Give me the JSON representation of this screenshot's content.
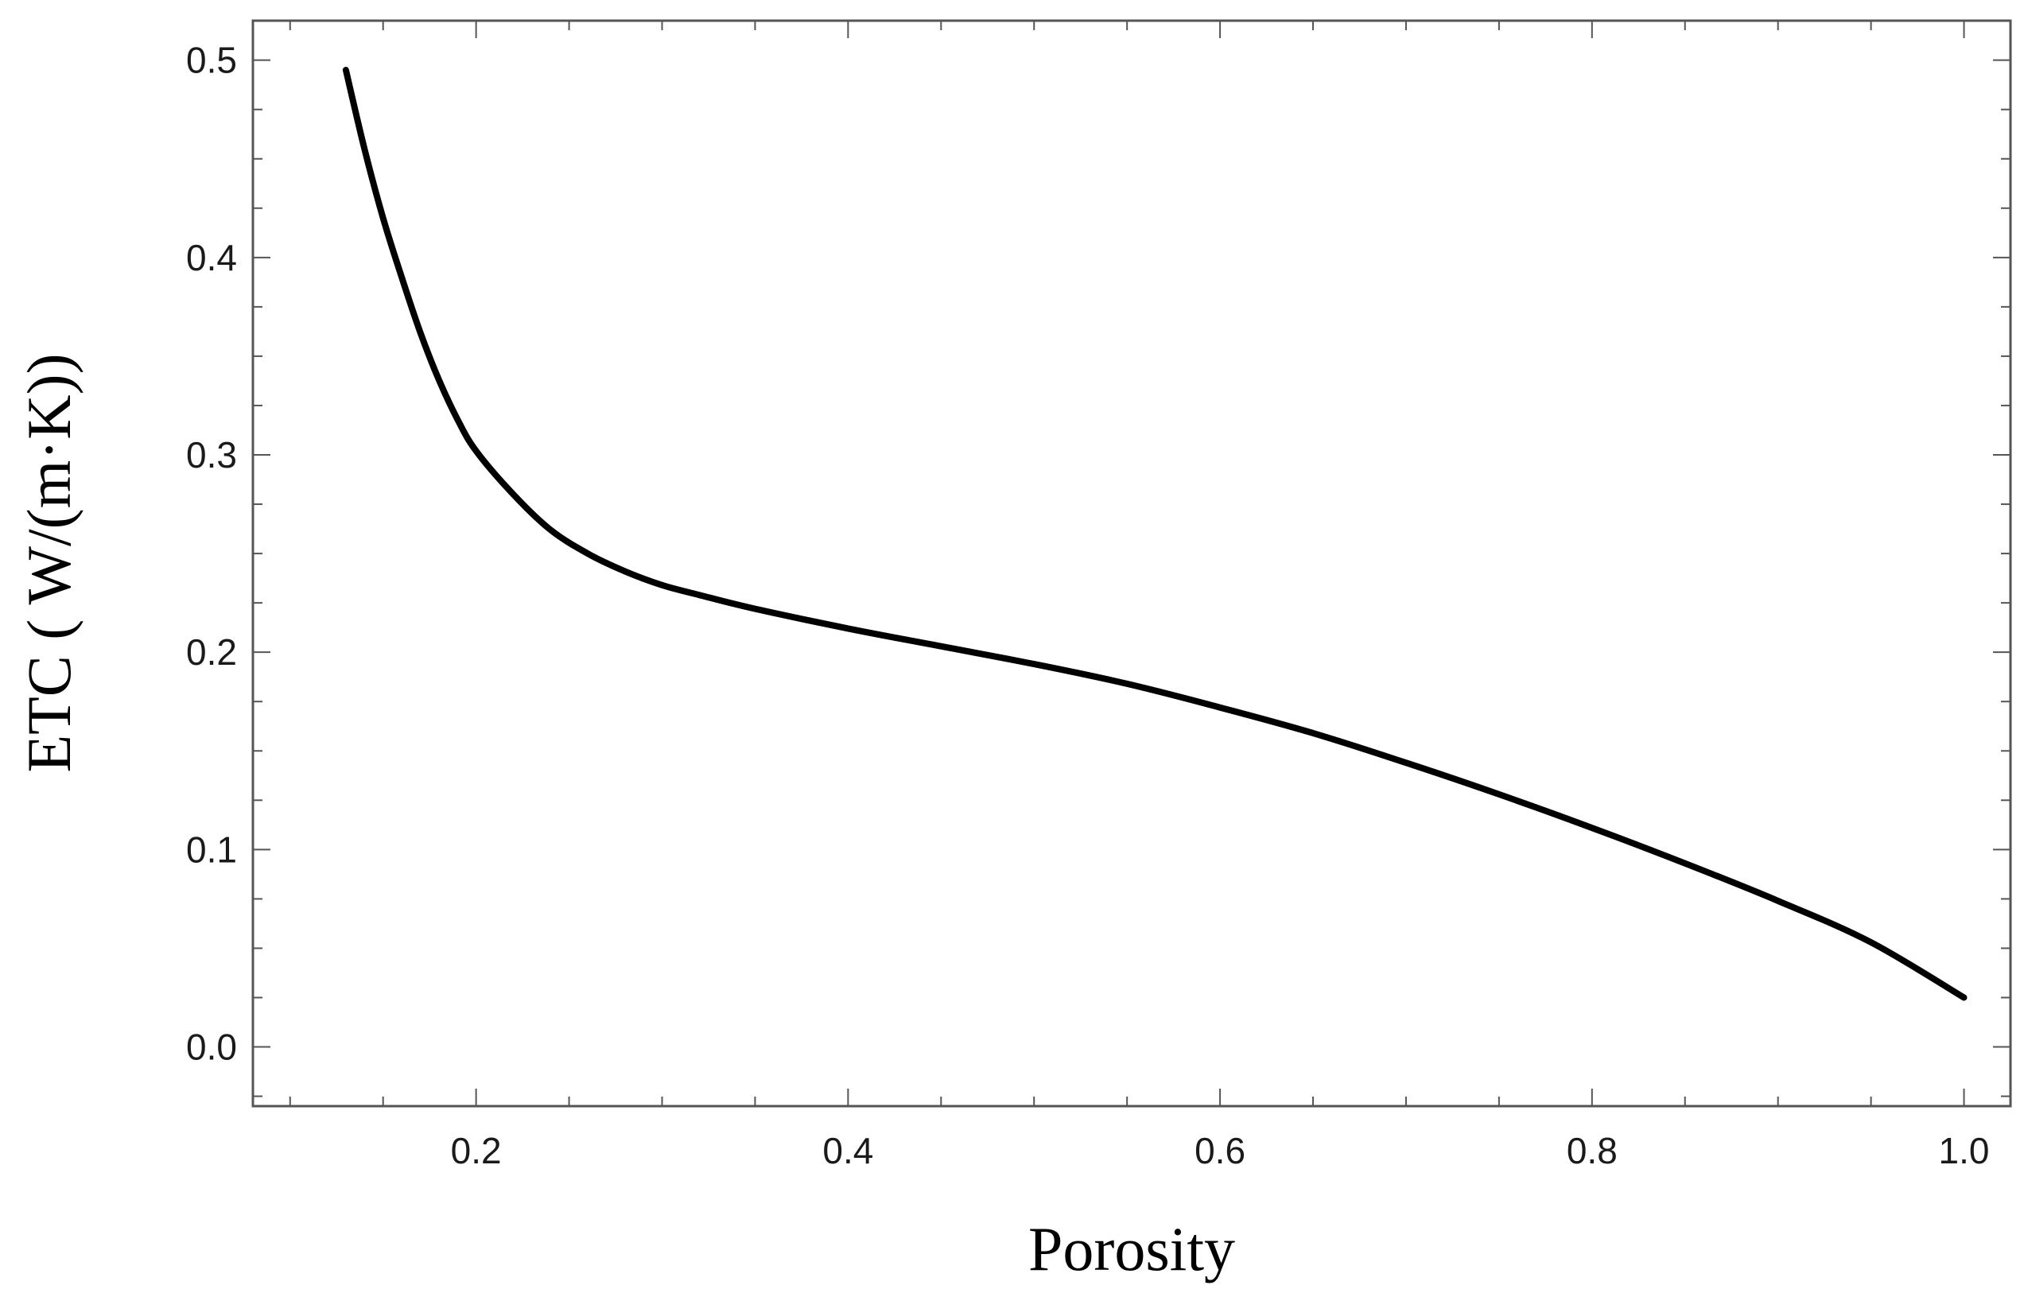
{
  "chart_data": {
    "type": "line",
    "title": "",
    "xlabel": "Porosity",
    "ylabel": "ETC ( W/(m·K))",
    "xlim": [
      0.08,
      1.025
    ],
    "ylim": [
      -0.03,
      0.52
    ],
    "x_ticks": [
      {
        "value": 0.2,
        "label": "0.2"
      },
      {
        "value": 0.4,
        "label": "0.4"
      },
      {
        "value": 0.6,
        "label": "0.6"
      },
      {
        "value": 0.8,
        "label": "0.8"
      },
      {
        "value": 1.0,
        "label": "1.0"
      }
    ],
    "y_ticks": [
      {
        "value": 0.0,
        "label": "0.0"
      },
      {
        "value": 0.1,
        "label": "0.1"
      },
      {
        "value": 0.2,
        "label": "0.2"
      },
      {
        "value": 0.3,
        "label": "0.3"
      },
      {
        "value": 0.4,
        "label": "0.4"
      },
      {
        "value": 0.5,
        "label": "0.5"
      }
    ],
    "x_minor_step": 0.05,
    "y_minor_step": 0.025,
    "grid": false,
    "legend": "none",
    "line_color": "#000000",
    "series": [
      {
        "x": [
          0.13,
          0.14,
          0.15,
          0.16,
          0.17,
          0.18,
          0.19,
          0.2,
          0.22,
          0.24,
          0.26,
          0.28,
          0.3,
          0.32,
          0.35,
          0.4,
          0.45,
          0.5,
          0.55,
          0.6,
          0.65,
          0.7,
          0.75,
          0.8,
          0.85,
          0.9,
          0.95,
          1.0
        ],
        "y": [
          0.495,
          0.455,
          0.42,
          0.39,
          0.362,
          0.338,
          0.318,
          0.302,
          0.28,
          0.262,
          0.25,
          0.241,
          0.234,
          0.229,
          0.222,
          0.212,
          0.203,
          0.194,
          0.184,
          0.172,
          0.159,
          0.144,
          0.128,
          0.111,
          0.093,
          0.074,
          0.053,
          0.025
        ]
      }
    ]
  }
}
